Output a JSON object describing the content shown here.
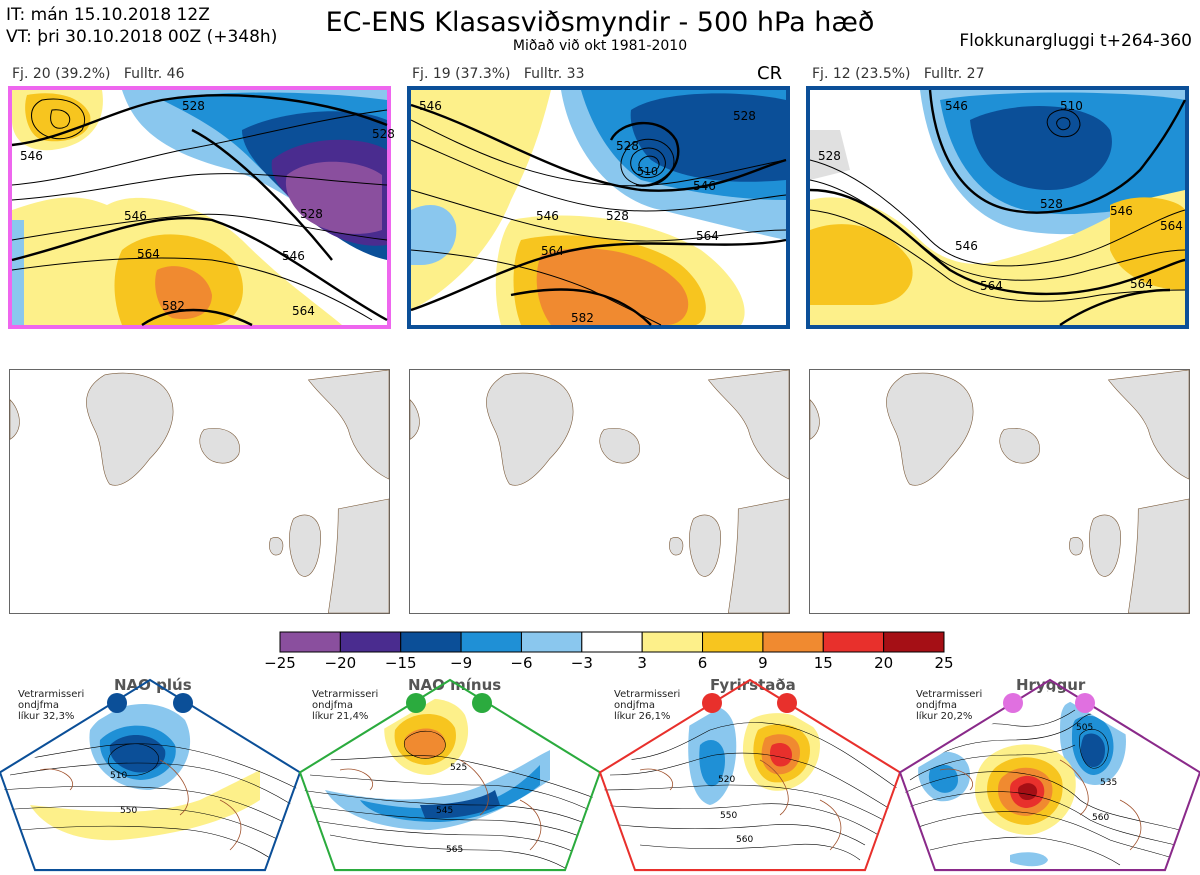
{
  "header": {
    "it_line": "IT: mán 15.10.2018 12Z",
    "vt_line": "VT: þri 30.10.2018 00Z  (+348h)",
    "title": "EC-ENS Klasasviðsmyndir - 500 hPa hæð",
    "subtitle": "Miðað við okt 1981-2010",
    "window": "Flokkunargluggi t+264-360"
  },
  "clusters": [
    {
      "fj": "Fj. 20 (39.2%)",
      "fulltr": "Fulltr. 46",
      "tag": "",
      "frame_color": "#ee66ee",
      "contour_labels": [
        "528",
        "546",
        "528",
        "546",
        "564",
        "564",
        "582",
        "546",
        "528"
      ]
    },
    {
      "fj": "Fj. 19 (37.3%)",
      "fulltr": "Fulltr. 33",
      "tag": "CR",
      "frame_color": "#0b4f98",
      "contour_labels": [
        "546",
        "528",
        "528",
        "510",
        "546",
        "528",
        "546",
        "564",
        "564",
        "582"
      ]
    },
    {
      "fj": "Fj. 12 (23.5%)",
      "fulltr": "Fulltr. 27",
      "tag": "",
      "frame_color": "#0b4f98",
      "contour_labels": [
        "546",
        "528",
        "510",
        "528",
        "546",
        "546",
        "564",
        "564",
        "564"
      ]
    }
  ],
  "colorbar": {
    "ticks": [
      "−25",
      "−20",
      "−15",
      "−9",
      "−6",
      "−3",
      "3",
      "6",
      "9",
      "15",
      "20",
      "25"
    ],
    "colors": [
      "#8a4f9e",
      "#4a2c8f",
      "#0b4f98",
      "#1f90d6",
      "#8ac7ee",
      "#ffffff",
      "#fdf08a",
      "#f7c51f",
      "#f08a30",
      "#e8302c",
      "#a50f15"
    ]
  },
  "regimes": [
    {
      "name": "NAO plús",
      "meta": [
        "Vetrarmisseri",
        "ondjfma",
        "líkur 32,3%"
      ],
      "color": "#0b4f98",
      "contour_labels": [
        "510",
        "550"
      ]
    },
    {
      "name": "NAO mínus",
      "meta": [
        "Vetrarmisseri",
        "ondjfma",
        "líkur 21,4%"
      ],
      "color": "#2bab3e",
      "contour_labels": [
        "525",
        "545",
        "565"
      ]
    },
    {
      "name": "Fyrirstaða",
      "meta": [
        "Vetrarmisseri",
        "ondjfma",
        "líkur 26,1%"
      ],
      "color": "#e8302c",
      "contour_labels": [
        "520",
        "550",
        "560"
      ]
    },
    {
      "name": "Hryggur",
      "meta": [
        "Vetrarmisseri",
        "ondjfma",
        "líkur 20,2%"
      ],
      "color": "#e070e0",
      "contour_labels": [
        "505",
        "535",
        "560"
      ]
    }
  ]
}
